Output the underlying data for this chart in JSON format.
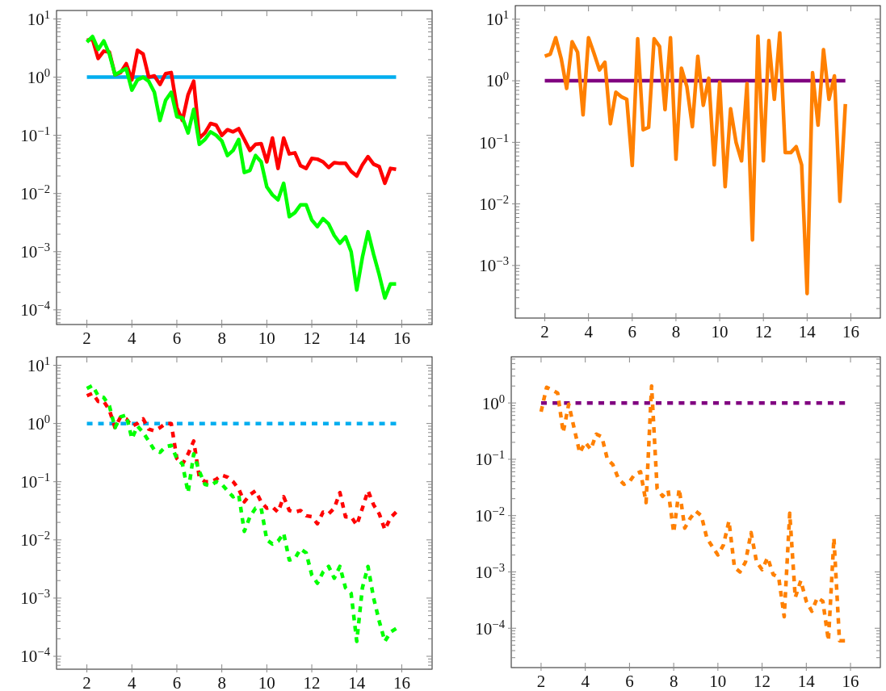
{
  "chart_data": [
    {
      "type": "line",
      "log": "y",
      "line_style": "solid",
      "xlim": [
        0.65,
        17.35
      ],
      "xticks": [
        2,
        4,
        6,
        8,
        10,
        12,
        14,
        16
      ],
      "ylim": [
        5.6e-05,
        14
      ],
      "yticks": [
        {
          "value": 0.0001,
          "label": "10$^{−4}$"
        },
        {
          "value": 0.001,
          "label": "10$^{−3}$"
        },
        {
          "value": 0.01,
          "label": "10$^{−2}$"
        },
        {
          "value": 0.1,
          "label": "10$^{−1}$"
        },
        {
          "value": 1,
          "label": "10$^{0}$"
        },
        {
          "value": 10,
          "label": "10$^{1}$"
        }
      ],
      "x": [
        2,
        2.25,
        2.5,
        2.75,
        3,
        3.25,
        3.5,
        3.75,
        4,
        4.25,
        4.5,
        4.75,
        5,
        5.25,
        5.5,
        5.75,
        6,
        6.25,
        6.5,
        6.75,
        7,
        7.25,
        7.5,
        7.75,
        8,
        8.25,
        8.5,
        8.75,
        9,
        9.25,
        9.5,
        9.75,
        10,
        10.25,
        10.5,
        10.75,
        11,
        11.25,
        11.5,
        11.75,
        12,
        12.25,
        12.5,
        12.75,
        13,
        13.25,
        13.5,
        13.75,
        14,
        14.25,
        14.5,
        14.75,
        15,
        15.25,
        15.5,
        15.75
      ],
      "series": [
        {
          "color": "#00aeef",
          "values": [
            1,
            1,
            1,
            1,
            1,
            1,
            1,
            1,
            1,
            1,
            1,
            1,
            1,
            1,
            1,
            1,
            1,
            1,
            1,
            1,
            1,
            1,
            1,
            1,
            1,
            1,
            1,
            1,
            1,
            1,
            1,
            1,
            1,
            1,
            1,
            1,
            1,
            1,
            1,
            1,
            1,
            1,
            1,
            1,
            1,
            1,
            1,
            1,
            1,
            1,
            1,
            1,
            1,
            1,
            1,
            1
          ]
        },
        {
          "color": "#ff0000",
          "values": [
            4.3,
            4.5,
            2.1,
            2.8,
            2.7,
            1.1,
            1.2,
            1.7,
            0.9,
            2.9,
            2.5,
            1.0,
            1.05,
            0.75,
            1.15,
            1.2,
            0.3,
            0.18,
            0.5,
            0.85,
            0.09,
            0.11,
            0.16,
            0.15,
            0.1,
            0.125,
            0.115,
            0.13,
            0.085,
            0.055,
            0.07,
            0.072,
            0.035,
            0.09,
            0.027,
            0.09,
            0.048,
            0.05,
            0.03,
            0.027,
            0.04,
            0.039,
            0.035,
            0.028,
            0.034,
            0.033,
            0.033,
            0.024,
            0.02,
            0.031,
            0.043,
            0.032,
            0.029,
            0.015,
            0.027,
            0.026
          ]
        },
        {
          "color": "#00ff00",
          "values": [
            4.0,
            5.0,
            3.0,
            4.2,
            2.5,
            1.1,
            1.25,
            1.4,
            0.6,
            0.9,
            1.0,
            0.85,
            0.55,
            0.18,
            0.4,
            0.55,
            0.21,
            0.2,
            0.11,
            0.28,
            0.07,
            0.085,
            0.115,
            0.1,
            0.08,
            0.045,
            0.055,
            0.085,
            0.023,
            0.025,
            0.045,
            0.035,
            0.013,
            0.0095,
            0.0078,
            0.015,
            0.004,
            0.0047,
            0.0064,
            0.0064,
            0.0035,
            0.0027,
            0.0037,
            0.003,
            0.0019,
            0.0014,
            0.0018,
            0.001,
            0.00022,
            0.0008,
            0.0022,
            0.0009,
            0.0004,
            0.00016,
            0.00028,
            0.00028
          ]
        }
      ]
    },
    {
      "type": "line",
      "log": "y",
      "line_style": "solid",
      "xlim": [
        0.65,
        17.35
      ],
      "xticks": [
        2,
        4,
        6,
        8,
        10,
        12,
        14,
        16
      ],
      "ylim": [
        0.00014,
        16.6
      ],
      "yticks": [
        {
          "value": 0.001,
          "label": "10$^{−3}$"
        },
        {
          "value": 0.01,
          "label": "10$^{−2}$"
        },
        {
          "value": 0.1,
          "label": "10$^{−1}$"
        },
        {
          "value": 1,
          "label": "10$^{0}$"
        },
        {
          "value": 10,
          "label": "10$^{1}$"
        }
      ],
      "x": [
        2,
        2.25,
        2.5,
        2.75,
        3,
        3.25,
        3.5,
        3.75,
        4,
        4.25,
        4.5,
        4.75,
        5,
        5.25,
        5.5,
        5.75,
        6,
        6.25,
        6.5,
        6.75,
        7,
        7.25,
        7.5,
        7.75,
        8,
        8.25,
        8.5,
        8.75,
        9,
        9.25,
        9.5,
        9.75,
        10,
        10.25,
        10.5,
        10.75,
        11,
        11.25,
        11.5,
        11.75,
        12,
        12.25,
        12.5,
        12.75,
        13,
        13.25,
        13.5,
        13.75,
        14,
        14.25,
        14.5,
        14.75,
        15,
        15.25,
        15.5,
        15.75
      ],
      "series": [
        {
          "color": "#800080",
          "values": [
            1,
            1,
            1,
            1,
            1,
            1,
            1,
            1,
            1,
            1,
            1,
            1,
            1,
            1,
            1,
            1,
            1,
            1,
            1,
            1,
            1,
            1,
            1,
            1,
            1,
            1,
            1,
            1,
            1,
            1,
            1,
            1,
            1,
            1,
            1,
            1,
            1,
            1,
            1,
            1,
            1,
            1,
            1,
            1,
            1,
            1,
            1,
            1,
            1,
            1,
            1,
            1,
            1,
            1,
            1,
            1
          ]
        },
        {
          "color": "#ff8000",
          "values": [
            2.5,
            2.7,
            5.0,
            2.3,
            0.75,
            4.3,
            2.9,
            0.28,
            5.0,
            2.8,
            1.5,
            2.0,
            0.2,
            0.65,
            0.55,
            0.5,
            0.042,
            4.8,
            0.16,
            0.175,
            4.8,
            3.6,
            0.34,
            5.0,
            0.053,
            1.6,
            0.8,
            0.18,
            2.5,
            0.4,
            1.1,
            0.043,
            0.95,
            0.019,
            0.35,
            0.1,
            0.05,
            0.9,
            0.0026,
            5.3,
            0.05,
            4.5,
            0.5,
            6.0,
            0.068,
            0.068,
            0.085,
            0.043,
            0.00035,
            1.35,
            0.19,
            3.2,
            0.5,
            1.2,
            0.011,
            0.42
          ]
        }
      ]
    },
    {
      "type": "line",
      "log": "y",
      "line_style": "dashed",
      "xlim": [
        0.65,
        17.35
      ],
      "xticks": [
        2,
        4,
        6,
        8,
        10,
        12,
        14,
        16
      ],
      "ylim": [
        6e-05,
        14
      ],
      "yticks": [
        {
          "value": 0.0001,
          "label": "10$^{−4}$"
        },
        {
          "value": 0.001,
          "label": "10$^{−3}$"
        },
        {
          "value": 0.01,
          "label": "10$^{−2}$"
        },
        {
          "value": 0.1,
          "label": "10$^{−1}$"
        },
        {
          "value": 1,
          "label": "10$^{0}$"
        },
        {
          "value": 10,
          "label": "10$^{1}$"
        }
      ],
      "x": [
        2,
        2.25,
        2.5,
        2.75,
        3,
        3.25,
        3.5,
        3.75,
        4,
        4.25,
        4.5,
        4.75,
        5,
        5.25,
        5.5,
        5.75,
        6,
        6.25,
        6.5,
        6.75,
        7,
        7.25,
        7.5,
        7.75,
        8,
        8.25,
        8.5,
        8.75,
        9,
        9.25,
        9.5,
        9.75,
        10,
        10.25,
        10.5,
        10.75,
        11,
        11.25,
        11.5,
        11.75,
        12,
        12.25,
        12.5,
        12.75,
        13,
        13.25,
        13.5,
        13.75,
        14,
        14.25,
        14.5,
        14.75,
        15,
        15.25,
        15.5,
        15.75
      ],
      "series": [
        {
          "color": "#00aeef",
          "values": [
            1,
            1,
            1,
            1,
            1,
            1,
            1,
            1,
            1,
            1,
            1,
            1,
            1,
            1,
            1,
            1,
            1,
            1,
            1,
            1,
            1,
            1,
            1,
            1,
            1,
            1,
            1,
            1,
            1,
            1,
            1,
            1,
            1,
            1,
            1,
            1,
            1,
            1,
            1,
            1,
            1,
            1,
            1,
            1,
            1,
            1,
            1,
            1,
            1,
            1,
            1,
            1,
            1,
            1,
            1,
            1
          ]
        },
        {
          "color": "#ff0000",
          "values": [
            3.0,
            3.3,
            2.4,
            2.4,
            1.7,
            0.85,
            1.3,
            1.2,
            0.9,
            1.0,
            1.2,
            0.8,
            0.75,
            0.85,
            1.0,
            1.0,
            0.25,
            0.2,
            0.3,
            0.5,
            0.12,
            0.1,
            0.1,
            0.11,
            0.13,
            0.12,
            0.1,
            0.075,
            0.045,
            0.06,
            0.07,
            0.045,
            0.035,
            0.037,
            0.03,
            0.055,
            0.032,
            0.03,
            0.032,
            0.026,
            0.025,
            0.019,
            0.03,
            0.028,
            0.035,
            0.065,
            0.025,
            0.025,
            0.018,
            0.035,
            0.07,
            0.04,
            0.028,
            0.015,
            0.024,
            0.03
          ]
        },
        {
          "color": "#00ff00",
          "values": [
            4.0,
            4.5,
            3.0,
            2.8,
            2.0,
            0.85,
            1.3,
            1.4,
            0.55,
            0.9,
            0.7,
            0.5,
            0.35,
            0.32,
            0.4,
            0.42,
            0.25,
            0.2,
            0.065,
            0.3,
            0.15,
            0.09,
            0.085,
            0.1,
            0.09,
            0.07,
            0.055,
            0.06,
            0.014,
            0.025,
            0.035,
            0.035,
            0.01,
            0.0085,
            0.0095,
            0.013,
            0.0045,
            0.0048,
            0.007,
            0.006,
            0.0025,
            0.0018,
            0.0028,
            0.0035,
            0.0022,
            0.0035,
            0.0015,
            0.0012,
            0.00018,
            0.0015,
            0.0035,
            0.001,
            0.0004,
            0.00018,
            0.00026,
            0.0003
          ]
        }
      ]
    },
    {
      "type": "line",
      "log": "y",
      "line_style": "dashed",
      "xlim": [
        0.65,
        17.35
      ],
      "xticks": [
        2,
        4,
        6,
        8,
        10,
        12,
        14,
        16
      ],
      "ylim": [
        2e-05,
        6.6
      ],
      "yticks": [
        {
          "value": 0.0001,
          "label": "10$^{−4}$"
        },
        {
          "value": 0.001,
          "label": "10$^{−3}$"
        },
        {
          "value": 0.01,
          "label": "10$^{−2}$"
        },
        {
          "value": 0.1,
          "label": "10$^{−1}$"
        },
        {
          "value": 1,
          "label": "10$^{0}$"
        }
      ],
      "x": [
        2,
        2.25,
        2.5,
        2.75,
        3,
        3.25,
        3.5,
        3.75,
        4,
        4.25,
        4.5,
        4.75,
        5,
        5.25,
        5.5,
        5.75,
        6,
        6.25,
        6.5,
        6.75,
        7,
        7.25,
        7.5,
        7.75,
        8,
        8.25,
        8.5,
        8.75,
        9,
        9.25,
        9.5,
        9.75,
        10,
        10.25,
        10.5,
        10.75,
        11,
        11.25,
        11.5,
        11.75,
        12,
        12.25,
        12.5,
        12.75,
        13,
        13.25,
        13.5,
        13.75,
        14,
        14.25,
        14.5,
        14.75,
        15,
        15.25,
        15.5,
        15.75
      ],
      "series": [
        {
          "color": "#800080",
          "values": [
            1,
            1,
            1,
            1,
            1,
            1,
            1,
            1,
            1,
            1,
            1,
            1,
            1,
            1,
            1,
            1,
            1,
            1,
            1,
            1,
            1,
            1,
            1,
            1,
            1,
            1,
            1,
            1,
            1,
            1,
            1,
            1,
            1,
            1,
            1,
            1,
            1,
            1,
            1,
            1,
            1,
            1,
            1,
            1,
            1,
            1,
            1,
            1,
            1,
            1,
            1,
            1,
            1,
            1,
            1,
            1
          ]
        },
        {
          "color": "#ff8000",
          "values": [
            0.7,
            1.9,
            1.7,
            1.5,
            0.3,
            0.95,
            0.35,
            0.13,
            0.2,
            0.15,
            0.28,
            0.25,
            0.1,
            0.08,
            0.045,
            0.036,
            0.04,
            0.055,
            0.06,
            0.017,
            2.0,
            0.03,
            0.022,
            0.028,
            0.005,
            0.03,
            0.006,
            0.009,
            0.012,
            0.01,
            0.004,
            0.0028,
            0.002,
            0.003,
            0.008,
            0.0012,
            0.001,
            0.0015,
            0.005,
            0.0015,
            0.0011,
            0.0018,
            0.0009,
            0.0008,
            0.00016,
            0.011,
            0.00035,
            0.0007,
            0.0003,
            0.0002,
            0.00035,
            0.0003,
            6e-05,
            0.004,
            6e-05,
            6e-05
          ]
        }
      ]
    }
  ]
}
